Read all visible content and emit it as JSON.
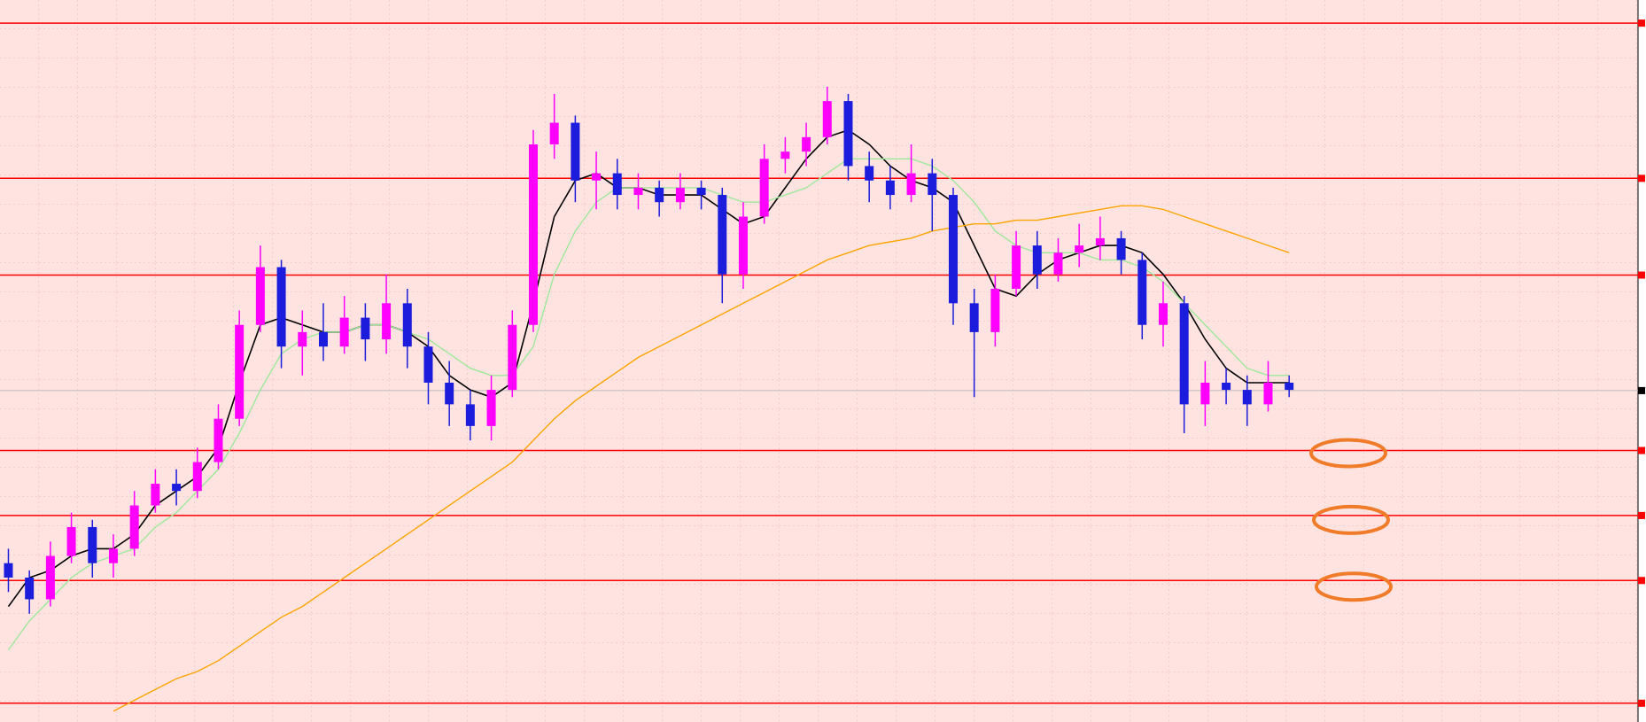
{
  "chart_data": {
    "type": "candlestick",
    "ylim": [
      0,
      100
    ],
    "up_color": "#ff00ff",
    "down_color": "#1c1cdc",
    "grid": true,
    "open": [
      22,
      20,
      17,
      23,
      27,
      22,
      24,
      30,
      33,
      32,
      36,
      42,
      55,
      63,
      52,
      54,
      52,
      56,
      53,
      58,
      52,
      47,
      44,
      41,
      46,
      55,
      80,
      83,
      75,
      76,
      73,
      74,
      72,
      74,
      73,
      62,
      70,
      78,
      79,
      81,
      86,
      77,
      75,
      73,
      76,
      73,
      58,
      54,
      60,
      66,
      62,
      65,
      66,
      67,
      64,
      55,
      58,
      44,
      47,
      46,
      44,
      47
    ],
    "high": [
      24,
      21,
      25,
      29,
      28,
      26,
      32,
      35,
      35,
      38,
      44,
      57,
      66,
      64,
      57,
      58,
      59,
      58,
      62,
      60,
      54,
      50,
      46,
      48,
      57,
      82,
      87,
      84,
      79,
      78,
      76,
      75,
      76,
      75,
      74,
      72,
      80,
      81,
      83,
      88,
      87,
      79,
      77,
      80,
      78,
      74,
      60,
      62,
      68,
      68,
      67,
      69,
      70,
      68,
      65,
      61,
      59,
      50,
      49,
      48,
      50,
      48
    ],
    "low": [
      18,
      15,
      16,
      22,
      20,
      20,
      23,
      29,
      30,
      31,
      35,
      41,
      54,
      49,
      48,
      50,
      51,
      50,
      51,
      49,
      44,
      41,
      39,
      39,
      45,
      54,
      78,
      72,
      71,
      71,
      71,
      70,
      71,
      71,
      58,
      60,
      69,
      76,
      77,
      80,
      75,
      72,
      71,
      72,
      68,
      55,
      45,
      52,
      59,
      60,
      61,
      63,
      64,
      62,
      53,
      52,
      40,
      41,
      44,
      41,
      43,
      45
    ],
    "close": [
      20,
      17,
      23,
      27,
      22,
      24,
      30,
      33,
      32,
      36,
      42,
      55,
      63,
      52,
      54,
      52,
      56,
      53,
      58,
      52,
      47,
      44,
      41,
      46,
      55,
      80,
      83,
      75,
      76,
      73,
      74,
      72,
      74,
      73,
      62,
      70,
      78,
      79,
      81,
      86,
      77,
      75,
      73,
      76,
      73,
      58,
      54,
      60,
      66,
      62,
      65,
      66,
      67,
      64,
      55,
      58,
      44,
      47,
      46,
      44,
      47,
      46
    ],
    "series": [
      {
        "color": "#000000",
        "values": [
          16,
          20,
          21,
          23,
          24,
          24,
          26,
          30,
          32,
          34,
          38,
          47,
          55,
          56,
          55,
          54,
          54,
          55,
          55,
          54,
          52,
          48,
          46,
          45,
          47,
          58,
          70,
          75,
          76,
          74,
          74,
          73,
          73,
          73,
          71,
          69,
          70,
          74,
          78,
          81,
          82,
          80,
          77,
          75,
          74,
          72,
          66,
          60,
          59,
          62,
          64,
          65,
          66,
          66,
          65,
          62,
          58,
          53,
          49,
          47,
          47,
          47
        ]
      },
      {
        "color": "#9ee89a",
        "values": [
          10,
          14,
          17,
          20,
          22,
          23,
          24,
          27,
          29,
          32,
          35,
          40,
          46,
          51,
          53,
          54,
          54,
          55,
          55,
          54,
          53,
          51,
          49,
          48,
          48,
          52,
          62,
          68,
          72,
          74,
          74,
          74,
          74,
          74,
          73,
          72,
          72,
          73,
          74,
          76,
          78,
          78,
          78,
          78,
          77,
          75,
          72,
          68,
          66,
          65,
          65,
          65,
          64,
          64,
          63,
          61,
          58,
          55,
          52,
          49,
          48,
          48
        ]
      },
      {
        "color": "#ffa500",
        "values": [
          null,
          null,
          null,
          null,
          null,
          1.5,
          3,
          4.5,
          6,
          7,
          8.5,
          10.5,
          12.5,
          14.5,
          16,
          18,
          20,
          22,
          24,
          26,
          28,
          30,
          32,
          34,
          36,
          39,
          42,
          44.5,
          46.5,
          48.5,
          50.5,
          52,
          53.5,
          55,
          56.5,
          58,
          59.5,
          61,
          62.5,
          64,
          65,
          66,
          66.5,
          67,
          68,
          68.5,
          69,
          69,
          69.5,
          69.5,
          70,
          70.5,
          71,
          71.5,
          71.5,
          71,
          70,
          69,
          68,
          67,
          66,
          65
        ]
      }
    ],
    "levels": [
      96.8,
      75.3,
      61.9,
      37.6,
      28.6,
      19.6,
      2.6
    ],
    "level_color": "#ff0000",
    "current_price": 45.9
  }
}
